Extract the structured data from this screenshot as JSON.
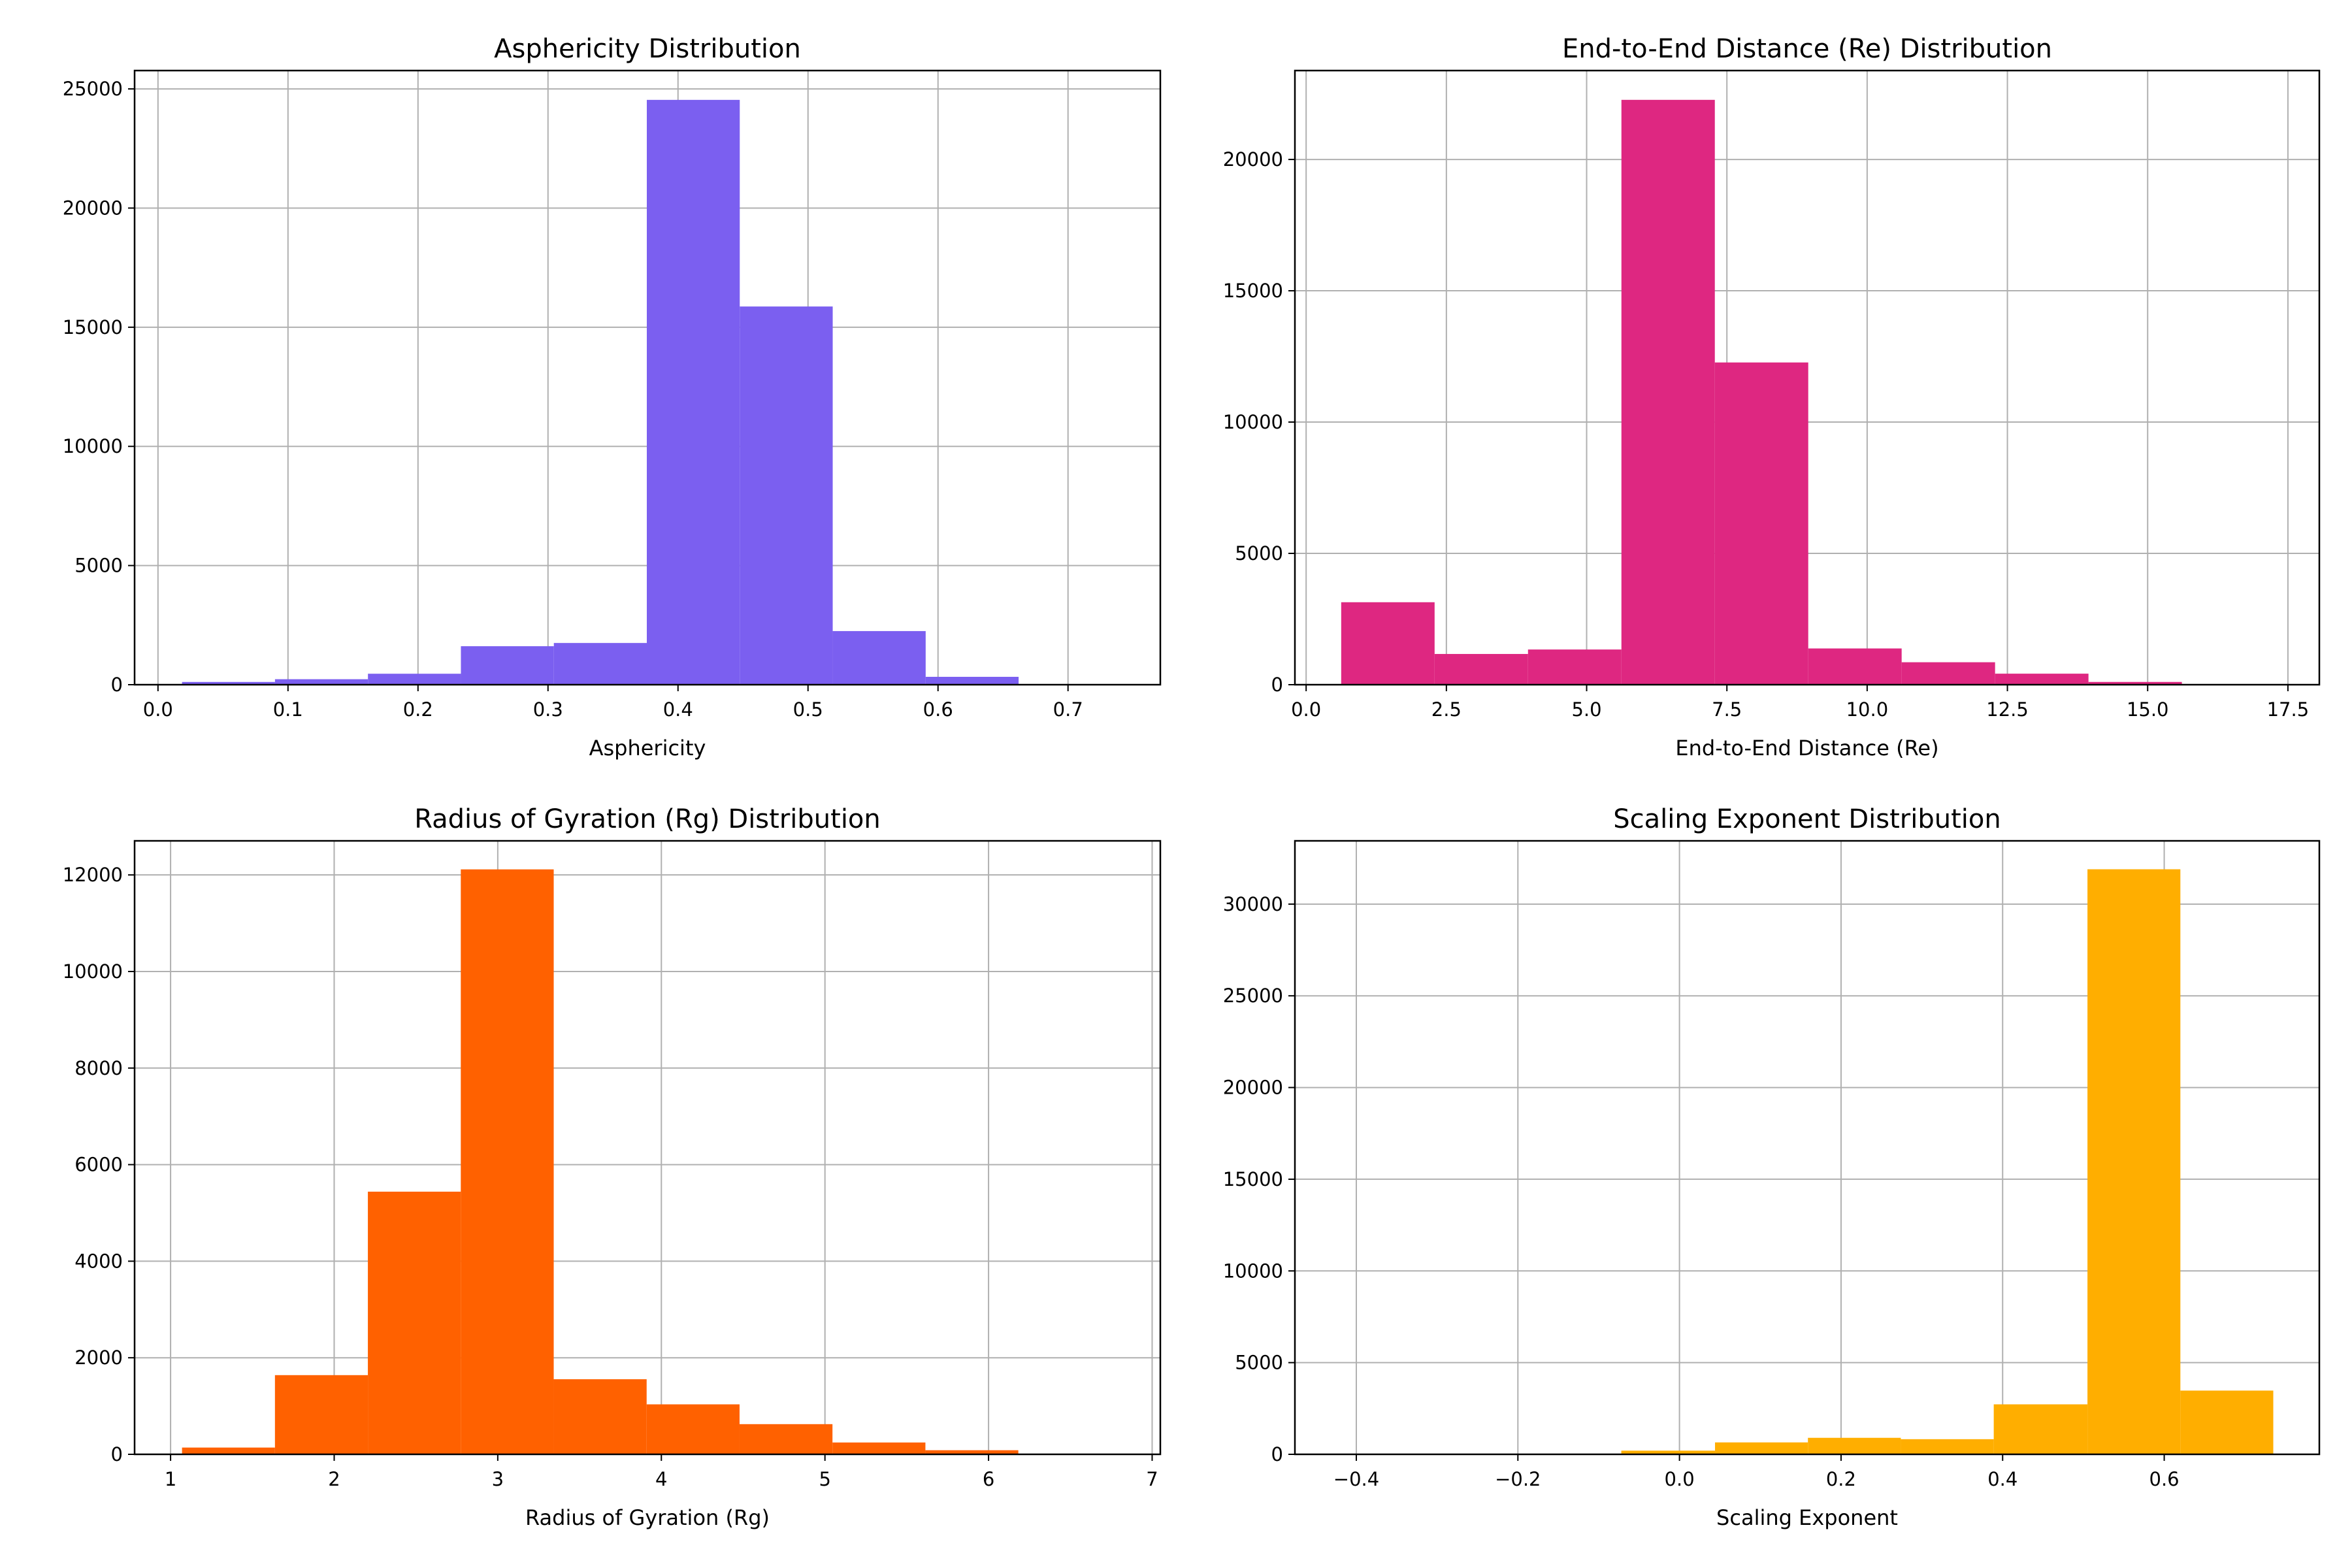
{
  "chart_data": [
    {
      "type": "bar",
      "title": "Asphericity Distribution",
      "xlabel": "Asphericity",
      "ylabel": "",
      "color": "#7B5FF0",
      "bin_edges": [
        0.0185,
        0.09,
        0.1615,
        0.233,
        0.3045,
        0.376,
        0.4475,
        0.519,
        0.5905,
        0.662,
        0.7335
      ],
      "values": [
        115,
        230,
        460,
        1615,
        1750,
        24540,
        15870,
        2250,
        330,
        0
      ],
      "xlim": [
        -0.018,
        0.771
      ],
      "ylim": [
        0,
        25770
      ],
      "xticks": [
        0.0,
        0.1,
        0.2,
        0.3,
        0.4,
        0.5,
        0.6,
        0.7
      ],
      "xtick_labels": [
        "0.0",
        "0.1",
        "0.2",
        "0.3",
        "0.4",
        "0.5",
        "0.6",
        "0.7"
      ],
      "yticks": [
        0,
        5000,
        10000,
        15000,
        20000,
        25000
      ],
      "ytick_labels": [
        "0",
        "5000",
        "10000",
        "15000",
        "20000",
        "25000"
      ],
      "grid": true
    },
    {
      "type": "bar",
      "title": "End-to-End Distance (Re) Distribution",
      "xlabel": "End-to-End Distance (Re)",
      "ylabel": "",
      "color": "#DE2781",
      "bin_edges": [
        0.625,
        2.29,
        3.955,
        5.62,
        7.285,
        8.95,
        10.615,
        12.28,
        13.945,
        15.61,
        17.275
      ],
      "values": [
        3140,
        1170,
        1340,
        22270,
        12270,
        1380,
        855,
        420,
        105,
        0
      ],
      "xlim": [
        -0.2,
        18.06
      ],
      "ylim": [
        0,
        23385
      ],
      "xticks": [
        0.0,
        2.5,
        5.0,
        7.5,
        10.0,
        12.5,
        15.0,
        17.5
      ],
      "xtick_labels": [
        "0.0",
        "2.5",
        "5.0",
        "7.5",
        "10.0",
        "12.5",
        "15.0",
        "17.5"
      ],
      "yticks": [
        0,
        5000,
        10000,
        15000,
        20000
      ],
      "ytick_labels": [
        "0",
        "5000",
        "10000",
        "15000",
        "20000"
      ],
      "grid": true
    },
    {
      "type": "bar",
      "title": "Radius of Gyration (Rg) Distribution",
      "xlabel": "Radius of Gyration (Rg)",
      "ylabel": "",
      "color": "#FF6100",
      "bin_edges": [
        1.07,
        1.638,
        2.206,
        2.774,
        3.342,
        3.91,
        4.478,
        5.046,
        5.614,
        6.182,
        6.75
      ],
      "values": [
        140,
        1640,
        5440,
        12115,
        1555,
        1035,
        625,
        245,
        85,
        0
      ],
      "xlim": [
        0.78,
        7.05
      ],
      "ylim": [
        0,
        12706
      ],
      "xticks": [
        1,
        2,
        3,
        4,
        5,
        6,
        7
      ],
      "xtick_labels": [
        "1",
        "2",
        "3",
        "4",
        "5",
        "6",
        "7"
      ],
      "yticks": [
        0,
        2000,
        4000,
        6000,
        8000,
        10000,
        12000
      ],
      "ytick_labels": [
        "0",
        "2000",
        "4000",
        "6000",
        "8000",
        "10000",
        "12000"
      ],
      "grid": true
    },
    {
      "type": "bar",
      "title": "Scaling Exponent Distribution",
      "xlabel": "Scaling Exponent",
      "ylabel": "",
      "color": "#FFAE00",
      "bin_edges": [
        -0.418,
        -0.303,
        -0.187,
        -0.072,
        0.044,
        0.159,
        0.274,
        0.389,
        0.505,
        0.62,
        0.735
      ],
      "values": [
        0,
        0,
        0,
        200,
        650,
        900,
        825,
        2725,
        31900,
        3475
      ],
      "xlim": [
        -0.476,
        0.792
      ],
      "ylim": [
        0,
        33450
      ],
      "xticks": [
        -0.4,
        -0.2,
        0.0,
        0.2,
        0.4,
        0.6
      ],
      "xtick_labels": [
        "−0.4",
        "−0.2",
        "0.0",
        "0.2",
        "0.4",
        "0.6"
      ],
      "yticks": [
        0,
        5000,
        10000,
        15000,
        20000,
        25000,
        30000
      ],
      "ytick_labels": [
        "0",
        "5000",
        "10000",
        "15000",
        "20000",
        "25000",
        "30000"
      ],
      "grid": true
    }
  ]
}
